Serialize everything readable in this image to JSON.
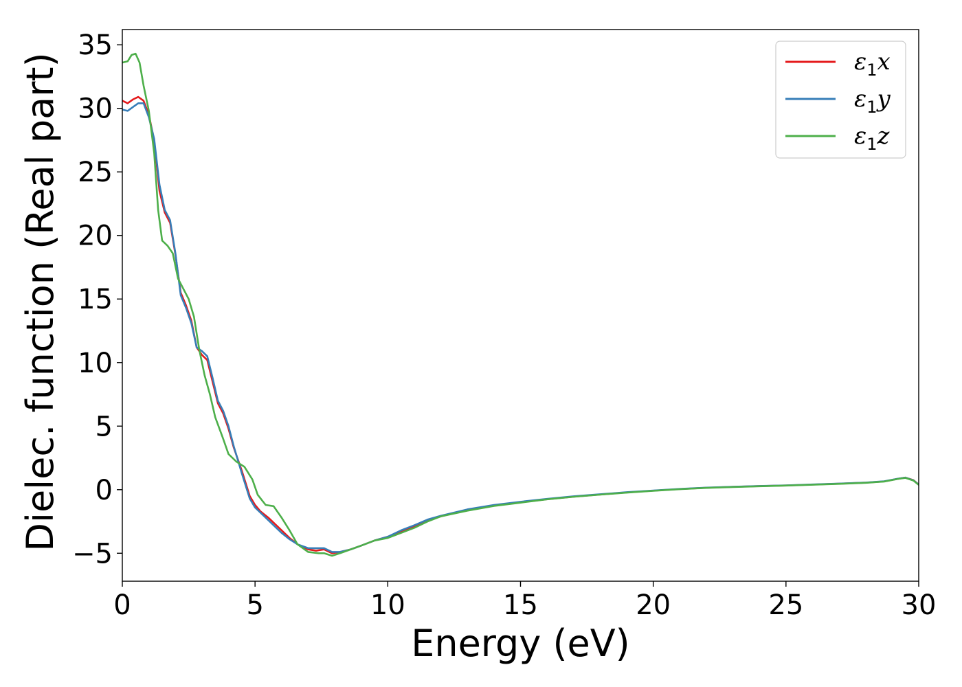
{
  "chart_data": {
    "type": "line",
    "title": "",
    "xlabel": "Energy (eV)",
    "ylabel": "Dielec. function (Real part)",
    "xlim": [
      0,
      30
    ],
    "ylim": [
      -7.2,
      36.2
    ],
    "xticks": [
      0,
      5,
      10,
      15,
      20,
      25,
      30
    ],
    "xtick_labels": [
      "0",
      "5",
      "10",
      "15",
      "20",
      "25",
      "30"
    ],
    "yticks": [
      -5,
      0,
      5,
      10,
      15,
      20,
      25,
      30,
      35
    ],
    "ytick_labels": [
      "−5",
      "0",
      "5",
      "10",
      "15",
      "20",
      "25",
      "30",
      "35"
    ],
    "grid": false,
    "legend_position": "top-right",
    "series": [
      {
        "name": "ε",
        "name_sub": "1",
        "name_suffix": "x",
        "color": "#e41a1c",
        "points": [
          [
            0,
            30.6
          ],
          [
            0.2,
            30.4
          ],
          [
            0.4,
            30.7
          ],
          [
            0.6,
            30.9
          ],
          [
            0.8,
            30.6
          ],
          [
            1.0,
            29.5
          ],
          [
            1.2,
            27.5
          ],
          [
            1.4,
            23.5
          ],
          [
            1.6,
            21.8
          ],
          [
            1.8,
            21.0
          ],
          [
            2.0,
            18.5
          ],
          [
            2.2,
            15.5
          ],
          [
            2.4,
            14.5
          ],
          [
            2.6,
            13.3
          ],
          [
            2.8,
            11.2
          ],
          [
            3.0,
            10.6
          ],
          [
            3.2,
            10.2
          ],
          [
            3.4,
            8.5
          ],
          [
            3.6,
            6.8
          ],
          [
            3.8,
            6.0
          ],
          [
            4.0,
            4.8
          ],
          [
            4.2,
            3.3
          ],
          [
            4.5,
            1.5
          ],
          [
            4.8,
            -0.5
          ],
          [
            5.0,
            -1.2
          ],
          [
            5.2,
            -1.7
          ],
          [
            5.5,
            -2.2
          ],
          [
            5.8,
            -2.8
          ],
          [
            6.0,
            -3.2
          ],
          [
            6.3,
            -3.8
          ],
          [
            6.6,
            -4.3
          ],
          [
            7.0,
            -4.7
          ],
          [
            7.3,
            -4.8
          ],
          [
            7.6,
            -4.7
          ],
          [
            7.9,
            -5.0
          ],
          [
            8.2,
            -4.9
          ],
          [
            8.6,
            -4.7
          ],
          [
            9.0,
            -4.4
          ],
          [
            9.5,
            -4.0
          ],
          [
            10.0,
            -3.7
          ],
          [
            10.5,
            -3.3
          ],
          [
            11.0,
            -2.9
          ],
          [
            11.5,
            -2.4
          ],
          [
            12.0,
            -2.1
          ],
          [
            13.0,
            -1.6
          ],
          [
            14.0,
            -1.25
          ],
          [
            15.0,
            -1.0
          ],
          [
            16.0,
            -0.75
          ],
          [
            17.0,
            -0.55
          ],
          [
            18.0,
            -0.38
          ],
          [
            19.0,
            -0.22
          ],
          [
            20.0,
            -0.08
          ],
          [
            21.0,
            0.05
          ],
          [
            22.0,
            0.15
          ],
          [
            23.0,
            0.22
          ],
          [
            24.0,
            0.28
          ],
          [
            25.0,
            0.33
          ],
          [
            26.0,
            0.4
          ],
          [
            27.0,
            0.47
          ],
          [
            28.0,
            0.55
          ],
          [
            28.7,
            0.65
          ],
          [
            29.2,
            0.85
          ],
          [
            29.5,
            0.95
          ],
          [
            29.8,
            0.75
          ],
          [
            30.0,
            0.4
          ]
        ]
      },
      {
        "name": "ε",
        "name_sub": "1",
        "name_suffix": "y",
        "color": "#377eb8",
        "points": [
          [
            0,
            29.9
          ],
          [
            0.2,
            29.8
          ],
          [
            0.4,
            30.1
          ],
          [
            0.6,
            30.4
          ],
          [
            0.8,
            30.4
          ],
          [
            1.0,
            29.3
          ],
          [
            1.2,
            27.6
          ],
          [
            1.4,
            24.0
          ],
          [
            1.6,
            22.0
          ],
          [
            1.8,
            21.2
          ],
          [
            2.0,
            18.6
          ],
          [
            2.2,
            15.3
          ],
          [
            2.4,
            14.3
          ],
          [
            2.6,
            13.1
          ],
          [
            2.8,
            11.2
          ],
          [
            3.0,
            10.9
          ],
          [
            3.2,
            10.5
          ],
          [
            3.4,
            8.8
          ],
          [
            3.6,
            7.0
          ],
          [
            3.8,
            6.2
          ],
          [
            4.0,
            5.0
          ],
          [
            4.2,
            3.4
          ],
          [
            4.5,
            1.3
          ],
          [
            4.8,
            -0.7
          ],
          [
            5.0,
            -1.4
          ],
          [
            5.2,
            -1.8
          ],
          [
            5.5,
            -2.4
          ],
          [
            5.8,
            -3.0
          ],
          [
            6.0,
            -3.4
          ],
          [
            6.3,
            -3.9
          ],
          [
            6.6,
            -4.3
          ],
          [
            7.0,
            -4.6
          ],
          [
            7.3,
            -4.6
          ],
          [
            7.6,
            -4.6
          ],
          [
            7.9,
            -4.9
          ],
          [
            8.2,
            -4.9
          ],
          [
            8.6,
            -4.7
          ],
          [
            9.0,
            -4.4
          ],
          [
            9.5,
            -4.0
          ],
          [
            10.0,
            -3.7
          ],
          [
            10.5,
            -3.2
          ],
          [
            11.0,
            -2.8
          ],
          [
            11.5,
            -2.35
          ],
          [
            12.0,
            -2.05
          ],
          [
            13.0,
            -1.55
          ],
          [
            14.0,
            -1.2
          ],
          [
            15.0,
            -0.95
          ],
          [
            16.0,
            -0.72
          ],
          [
            17.0,
            -0.52
          ],
          [
            18.0,
            -0.36
          ],
          [
            19.0,
            -0.2
          ],
          [
            20.0,
            -0.07
          ],
          [
            21.0,
            0.06
          ],
          [
            22.0,
            0.16
          ],
          [
            23.0,
            0.23
          ],
          [
            24.0,
            0.29
          ],
          [
            25.0,
            0.34
          ],
          [
            26.0,
            0.41
          ],
          [
            27.0,
            0.48
          ],
          [
            28.0,
            0.56
          ],
          [
            28.7,
            0.66
          ],
          [
            29.2,
            0.86
          ],
          [
            29.5,
            0.95
          ],
          [
            29.8,
            0.74
          ],
          [
            30.0,
            0.4
          ]
        ]
      },
      {
        "name": "ε",
        "name_sub": "1",
        "name_suffix": "z",
        "color": "#4daf4a",
        "points": [
          [
            0,
            33.6
          ],
          [
            0.2,
            33.7
          ],
          [
            0.35,
            34.2
          ],
          [
            0.5,
            34.3
          ],
          [
            0.65,
            33.6
          ],
          [
            0.8,
            31.8
          ],
          [
            1.0,
            29.8
          ],
          [
            1.2,
            26.5
          ],
          [
            1.35,
            22.0
          ],
          [
            1.5,
            19.6
          ],
          [
            1.7,
            19.2
          ],
          [
            1.9,
            18.6
          ],
          [
            2.1,
            16.6
          ],
          [
            2.3,
            15.8
          ],
          [
            2.5,
            15.0
          ],
          [
            2.7,
            13.6
          ],
          [
            2.9,
            11.0
          ],
          [
            3.1,
            9.0
          ],
          [
            3.3,
            7.5
          ],
          [
            3.5,
            5.7
          ],
          [
            3.8,
            4.0
          ],
          [
            4.0,
            2.8
          ],
          [
            4.3,
            2.2
          ],
          [
            4.6,
            1.8
          ],
          [
            4.9,
            0.8
          ],
          [
            5.1,
            -0.4
          ],
          [
            5.4,
            -1.2
          ],
          [
            5.7,
            -1.3
          ],
          [
            6.0,
            -2.2
          ],
          [
            6.3,
            -3.2
          ],
          [
            6.6,
            -4.3
          ],
          [
            7.0,
            -4.9
          ],
          [
            7.4,
            -5.0
          ],
          [
            7.6,
            -5.0
          ],
          [
            7.9,
            -5.2
          ],
          [
            8.2,
            -5.0
          ],
          [
            8.6,
            -4.7
          ],
          [
            9.0,
            -4.4
          ],
          [
            9.5,
            -4.0
          ],
          [
            10.0,
            -3.8
          ],
          [
            10.5,
            -3.4
          ],
          [
            11.0,
            -3.0
          ],
          [
            11.5,
            -2.5
          ],
          [
            12.0,
            -2.1
          ],
          [
            13.0,
            -1.65
          ],
          [
            14.0,
            -1.28
          ],
          [
            15.0,
            -1.02
          ],
          [
            16.0,
            -0.76
          ],
          [
            17.0,
            -0.56
          ],
          [
            18.0,
            -0.39
          ],
          [
            19.0,
            -0.23
          ],
          [
            20.0,
            -0.09
          ],
          [
            21.0,
            0.04
          ],
          [
            22.0,
            0.14
          ],
          [
            23.0,
            0.21
          ],
          [
            24.0,
            0.27
          ],
          [
            25.0,
            0.32
          ],
          [
            26.0,
            0.39
          ],
          [
            27.0,
            0.46
          ],
          [
            28.0,
            0.54
          ],
          [
            28.7,
            0.64
          ],
          [
            29.2,
            0.84
          ],
          [
            29.5,
            0.93
          ],
          [
            29.8,
            0.72
          ],
          [
            30.0,
            0.38
          ]
        ]
      }
    ]
  }
}
